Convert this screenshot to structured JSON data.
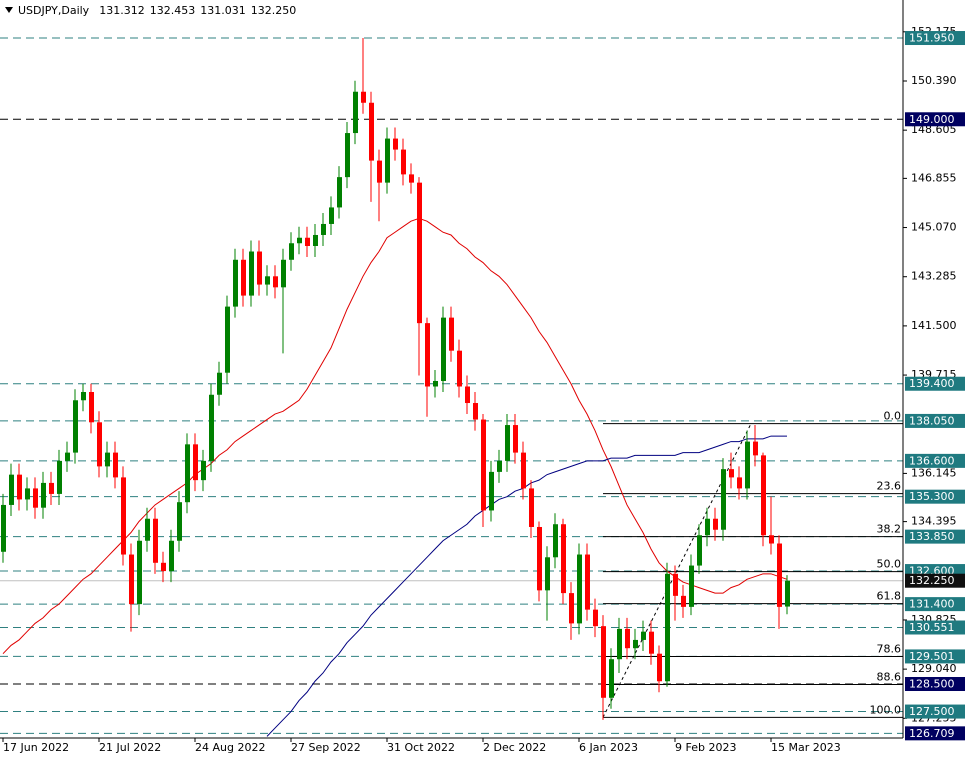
{
  "chart_data": {
    "type": "candlestick",
    "title": "USDJPY,Daily",
    "header_values": [
      131.312,
      132.453,
      131.031,
      {
        "value": 132.25,
        "label": "132.250"
      }
    ],
    "categories": [
      "17 Jun 2022",
      null,
      null,
      null,
      null,
      null,
      null,
      null,
      null,
      null,
      null,
      null,
      "21 Jul 2022",
      null,
      null,
      null,
      null,
      null,
      null,
      null,
      null,
      null,
      null,
      null,
      "24 Aug 2022",
      null,
      null,
      null,
      null,
      null,
      null,
      null,
      null,
      null,
      null,
      null,
      "27 Sep 2022",
      null,
      null,
      null,
      null,
      null,
      null,
      null,
      null,
      null,
      null,
      null,
      "31 Oct 2022",
      null,
      null,
      null,
      null,
      null,
      null,
      null,
      null,
      null,
      null,
      null,
      "2 Dec 2022",
      null,
      null,
      null,
      null,
      null,
      null,
      null,
      null,
      null,
      null,
      null,
      "6 Jan 2023",
      null,
      null,
      null,
      null,
      null,
      null,
      null,
      null,
      null,
      null,
      null,
      "9 Feb 2023",
      null,
      null,
      null,
      null,
      null,
      null,
      null,
      null,
      null,
      null,
      null,
      "15 Mar 2023",
      null,
      null
    ],
    "open": [
      133.3,
      135.0,
      136.1,
      135.2,
      135.6,
      134.9,
      135.8,
      135.4,
      136.6,
      136.9,
      138.8,
      139.1,
      138.0,
      136.4,
      136.9,
      136.0,
      133.2,
      131.4,
      133.7,
      134.5,
      132.9,
      132.6,
      133.7,
      135.1,
      137.2,
      135.9,
      136.6,
      139.0,
      139.8,
      142.2,
      143.9,
      142.6,
      144.2,
      143.0,
      143.3,
      142.9,
      143.9,
      144.5,
      144.7,
      144.4,
      144.8,
      145.2,
      145.8,
      146.9,
      148.5,
      150.0,
      149.6,
      147.5,
      146.7,
      148.3,
      147.9,
      147.0,
      146.7,
      141.6,
      139.3,
      139.5,
      141.8,
      140.6,
      139.3,
      138.7,
      138.1,
      134.8,
      136.2,
      136.6,
      137.9,
      136.9,
      135.6,
      134.2,
      131.9,
      133.1,
      134.3,
      131.8,
      130.7,
      133.2,
      131.2,
      130.6,
      128.0,
      129.4,
      130.5,
      129.8,
      130.1,
      130.4,
      129.6,
      128.6,
      132.5,
      131.7,
      131.3,
      132.8,
      133.9,
      134.5,
      134.1,
      136.3,
      136.0,
      135.6,
      137.3,
      136.8,
      133.9,
      133.6,
      131.312
    ],
    "high": [
      135.4,
      136.5,
      136.5,
      136.0,
      136.0,
      136.2,
      136.2,
      137.0,
      137.3,
      139.2,
      139.4,
      139.4,
      138.4,
      137.3,
      137.3,
      136.4,
      133.6,
      134.1,
      134.9,
      134.9,
      133.3,
      134.1,
      135.5,
      137.6,
      137.6,
      137.0,
      139.4,
      140.2,
      142.6,
      144.3,
      144.3,
      144.6,
      144.6,
      143.7,
      143.7,
      144.3,
      144.9,
      145.1,
      145.1,
      145.2,
      145.6,
      146.2,
      147.3,
      148.9,
      150.4,
      151.95,
      150.0,
      147.9,
      148.7,
      148.7,
      148.3,
      147.4,
      146.9,
      141.8,
      139.9,
      142.2,
      142.2,
      141.0,
      139.7,
      139.1,
      138.3,
      136.6,
      137.0,
      138.3,
      138.3,
      137.3,
      135.9,
      134.4,
      133.5,
      134.7,
      134.5,
      132.2,
      133.6,
      133.6,
      131.6,
      131.0,
      129.8,
      130.9,
      130.9,
      130.5,
      130.8,
      130.8,
      129.9,
      132.9,
      132.8,
      132.1,
      133.2,
      134.3,
      134.9,
      134.9,
      136.7,
      136.9,
      136.4,
      137.7,
      137.9,
      136.9,
      135.3,
      133.9,
      132.453
    ],
    "low": [
      132.9,
      134.6,
      134.8,
      134.8,
      134.5,
      134.5,
      135.0,
      135.0,
      136.2,
      136.5,
      138.4,
      137.6,
      136.0,
      136.0,
      135.6,
      132.8,
      130.4,
      131.0,
      133.3,
      132.5,
      132.2,
      132.2,
      133.3,
      134.7,
      135.5,
      135.5,
      136.2,
      138.6,
      139.4,
      141.8,
      142.2,
      142.2,
      142.6,
      142.6,
      142.5,
      140.5,
      143.5,
      144.1,
      144.0,
      144.0,
      144.4,
      144.8,
      145.4,
      146.5,
      148.1,
      149.2,
      146.0,
      145.3,
      146.3,
      147.5,
      146.6,
      146.3,
      139.7,
      138.2,
      138.9,
      139.1,
      140.2,
      138.9,
      138.3,
      137.7,
      134.2,
      134.4,
      135.8,
      136.2,
      136.5,
      135.2,
      133.8,
      131.5,
      130.8,
      132.7,
      131.4,
      130.1,
      130.3,
      130.8,
      130.2,
      127.2,
      127.6,
      128.9,
      129.4,
      129.4,
      129.7,
      129.2,
      128.2,
      128.4,
      130.8,
      130.9,
      131.0,
      132.5,
      133.5,
      133.7,
      133.7,
      135.6,
      135.2,
      135.2,
      136.4,
      133.5,
      133.2,
      130.5,
      131.031
    ],
    "close": [
      135.0,
      136.1,
      135.2,
      135.6,
      134.9,
      135.8,
      135.4,
      136.6,
      136.9,
      138.8,
      139.1,
      138.0,
      136.4,
      136.9,
      136.0,
      133.2,
      131.4,
      133.7,
      134.5,
      132.9,
      132.6,
      133.7,
      135.1,
      137.2,
      135.9,
      136.6,
      139.0,
      139.8,
      142.2,
      143.9,
      142.6,
      144.2,
      143.0,
      143.3,
      142.9,
      143.9,
      144.5,
      144.7,
      144.4,
      144.8,
      145.2,
      145.8,
      146.9,
      148.5,
      150.0,
      149.6,
      147.5,
      146.7,
      148.3,
      147.9,
      147.0,
      146.7,
      141.6,
      139.3,
      139.5,
      141.8,
      140.6,
      139.3,
      138.7,
      138.1,
      134.8,
      136.2,
      136.6,
      137.9,
      136.9,
      135.6,
      134.2,
      131.9,
      133.1,
      134.3,
      131.8,
      130.7,
      133.2,
      131.2,
      130.6,
      128.0,
      129.4,
      130.5,
      129.8,
      130.1,
      130.4,
      129.6,
      128.6,
      132.5,
      131.7,
      131.3,
      132.8,
      133.9,
      134.5,
      134.1,
      136.3,
      136.0,
      135.6,
      137.3,
      136.8,
      133.9,
      133.6,
      131.3,
      132.25
    ],
    "up_color": "#008000",
    "down_color": "#ff0000",
    "moving_averages": [
      {
        "color": "#e00000",
        "values": [
          129.6,
          129.9,
          130.1,
          130.4,
          130.7,
          130.9,
          131.2,
          131.4,
          131.7,
          132.0,
          132.3,
          132.5,
          132.8,
          133.1,
          133.4,
          133.7,
          134.0,
          134.4,
          134.7,
          135.0,
          135.2,
          135.4,
          135.6,
          135.8,
          136.1,
          136.3,
          136.5,
          136.8,
          137.0,
          137.3,
          137.5,
          137.7,
          137.9,
          138.1,
          138.3,
          138.4,
          138.6,
          138.8,
          139.2,
          139.7,
          140.2,
          140.7,
          141.4,
          142.1,
          142.7,
          143.3,
          143.8,
          144.2,
          144.7,
          144.9,
          145.1,
          145.3,
          145.4,
          145.3,
          145.1,
          144.9,
          144.8,
          144.5,
          144.3,
          144.0,
          143.8,
          143.5,
          143.3,
          143.0,
          142.6,
          142.2,
          141.8,
          141.3,
          140.9,
          140.4,
          139.9,
          139.4,
          138.8,
          138.3,
          137.7,
          137.0,
          136.4,
          135.7,
          135.0,
          134.5,
          134.0,
          133.4,
          132.9,
          132.6,
          132.4,
          132.2,
          132.1,
          132.0,
          131.9,
          131.8,
          131.8,
          132.0,
          132.1,
          132.3,
          132.4,
          132.5,
          132.5,
          132.4,
          132.3
        ]
      },
      {
        "color": "#000080",
        "values": [
          null,
          null,
          null,
          null,
          null,
          null,
          null,
          null,
          null,
          null,
          null,
          null,
          null,
          null,
          null,
          null,
          null,
          null,
          null,
          null,
          null,
          null,
          null,
          null,
          null,
          null,
          null,
          null,
          null,
          null,
          null,
          null,
          null,
          126.6,
          126.9,
          127.2,
          127.5,
          127.9,
          128.2,
          128.6,
          128.9,
          129.3,
          129.6,
          130.0,
          130.3,
          130.6,
          131.0,
          131.3,
          131.6,
          131.9,
          132.2,
          132.5,
          132.8,
          133.1,
          133.4,
          133.7,
          133.9,
          134.1,
          134.3,
          134.6,
          134.8,
          135.0,
          135.2,
          135.3,
          135.5,
          135.6,
          135.8,
          135.9,
          136.1,
          136.2,
          136.3,
          136.4,
          136.5,
          136.6,
          136.6,
          136.6,
          136.7,
          136.7,
          136.7,
          136.8,
          136.8,
          136.8,
          136.8,
          136.8,
          136.8,
          136.9,
          136.9,
          136.9,
          137.0,
          137.1,
          137.2,
          137.3,
          137.3,
          137.4,
          137.4,
          137.4,
          137.5,
          137.5,
          137.5
        ]
      }
    ],
    "ylim": [
      126.54,
      153.33
    ],
    "yticks": [
      152.175,
      {
        "value": 150.39,
        "label": "150.390"
      },
      148.605,
      146.855,
      {
        "value": 145.07,
        "label": "145.070"
      },
      143.285,
      {
        "value": 141.5,
        "label": "141.500"
      },
      139.715,
      136.145,
      134.395,
      130.825,
      {
        "value": 129.04,
        "label": "129.040"
      },
      127.255
    ],
    "levels": [
      {
        "value": 151.95,
        "label": "151.950",
        "line": "dashed",
        "line_color": "#2f8080",
        "box_color": "#1f7a80"
      },
      {
        "value": 149.0,
        "label": "149.000",
        "line": "dashed",
        "line_color": "#000000",
        "box_color": "#000060"
      },
      {
        "value": 139.4,
        "label": "139.400",
        "line": "dashed",
        "line_color": "#2f8080",
        "box_color": "#1f7a80"
      },
      {
        "value": 138.05,
        "label": "138.050",
        "line": "dashed",
        "line_color": "#2f8080",
        "box_color": "#1f7a80"
      },
      {
        "value": 136.6,
        "label": "136.600",
        "line": "dashed",
        "line_color": "#2f8080",
        "box_color": "#1f7a80"
      },
      {
        "value": 135.3,
        "label": "135.300",
        "line": "dashed",
        "line_color": "#2f8080",
        "box_color": "#1f7a80"
      },
      {
        "value": 133.85,
        "label": "133.850",
        "line": "dashed",
        "line_color": "#2f8080",
        "box_color": "#1f7a80"
      },
      {
        "value": 132.6,
        "label": "132.600",
        "line": "dashed",
        "line_color": "#2f8080",
        "box_color": "#1f7a80"
      },
      {
        "value": 132.25,
        "label": "132.250",
        "line": "solid",
        "line_color": "#c0c0c0",
        "box_color": "#101010"
      },
      {
        "value": 131.4,
        "label": "131.400",
        "line": "dashed",
        "line_color": "#2f8080",
        "box_color": "#1f7a80"
      },
      {
        "value": 130.551,
        "label": "130.551",
        "line": "dashed",
        "line_color": "#2f8080",
        "box_color": "#1f7a80"
      },
      {
        "value": 129.501,
        "label": "129.501",
        "line": "dashed",
        "line_color": "#2f8080",
        "box_color": "#1f7a80"
      },
      {
        "value": 128.5,
        "label": "128.500",
        "line": "dashed",
        "line_color": "#000000",
        "box_color": "#000060"
      },
      {
        "value": 127.5,
        "label": "127.500",
        "line": "dashed",
        "line_color": "#2f8080",
        "box_color": "#1f7a80"
      },
      {
        "value": 126.709,
        "label": "126.709",
        "line": "dashed",
        "line_color": "#2f8080",
        "box_color": "#000060"
      }
    ],
    "fibonacci": {
      "labels": [
        "0.0",
        "23.6",
        "38.2",
        "50.0",
        "61.8",
        "78.6",
        "88.6",
        "100.0"
      ],
      "prices": [
        137.95,
        135.41,
        133.85,
        132.58,
        131.42,
        129.5,
        128.48,
        127.29
      ],
      "color": "#000000"
    }
  }
}
